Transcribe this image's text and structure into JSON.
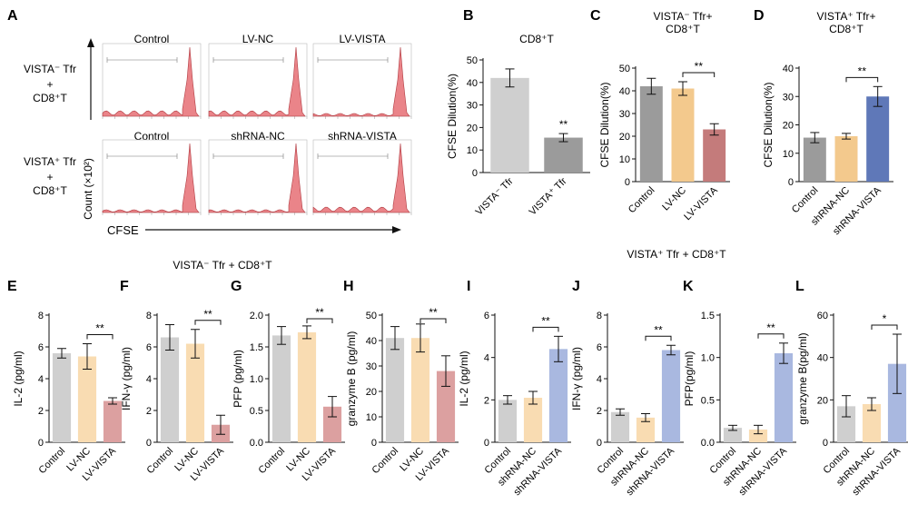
{
  "colors": {
    "grey": "#cfcfcf",
    "grey_dark": "#9b9b9b",
    "orange": "#f3c98d",
    "red": "#c47b7b",
    "blue": "#5f78b8",
    "light_orange": "#f9dcb2",
    "light_red": "#dca0a0",
    "light_blue": "#a9b8e0",
    "hist": "#e35b62"
  },
  "panel_a": {
    "letter": "A",
    "row1_label": [
      "VISTA⁻ Tfr",
      "+",
      "CD8⁺T"
    ],
    "row2_label": [
      "VISTA⁺ Tfr",
      "+",
      "CD8⁺T"
    ],
    "row1_titles": [
      "Control",
      "LV-NC",
      "LV-VISTA"
    ],
    "row2_titles": [
      "Control",
      "shRNA-NC",
      "shRNA-VISTA"
    ],
    "y_axis_label": "Count (×10²)",
    "x_axis_label": "CFSE"
  },
  "group_titles": {
    "left": "VISTA⁻ Tfr + CD8⁺T",
    "right": "VISTA⁺ Tfr + CD8⁺T"
  },
  "chart_data": [
    {
      "id": "B",
      "type": "bar",
      "title": "CD8⁺T",
      "ylabel": "CFSE Dilution(%)",
      "ylim": [
        0,
        50
      ],
      "ticks": [
        0,
        10,
        20,
        30,
        40,
        50
      ],
      "categories": [
        "VISTA⁻ Tfr",
        "VISTA⁺ Tfr"
      ],
      "values": [
        42,
        15.5
      ],
      "errors": [
        4,
        1.8
      ],
      "colors": [
        "#cfcfcf",
        "#9b9b9b"
      ],
      "star_label": "**",
      "star_over": 1
    },
    {
      "id": "C",
      "type": "bar",
      "title": "VISTA⁻ Tfr+ CD8⁺T",
      "ylabel": "CFSE Dilution(%)",
      "ylim": [
        0,
        50
      ],
      "ticks": [
        0,
        10,
        20,
        30,
        40,
        50
      ],
      "categories": [
        "Control",
        "LV-NC",
        "LV-VISTA"
      ],
      "values": [
        42,
        41,
        23
      ],
      "errors": [
        3.5,
        3,
        2.5
      ],
      "colors": [
        "#9b9b9b",
        "#f3c98d",
        "#c47b7b"
      ],
      "bracket": [
        1,
        2
      ],
      "star_label": "**"
    },
    {
      "id": "D",
      "type": "bar",
      "title": "VISTA⁺ Tfr+ CD8⁺T",
      "ylabel": "CFSE Dilution(%)",
      "ylim": [
        0,
        40
      ],
      "ticks": [
        0,
        10,
        20,
        30,
        40
      ],
      "categories": [
        "Control",
        "shRNA-NC",
        "shRNA-VISTA"
      ],
      "values": [
        15.5,
        16,
        30
      ],
      "errors": [
        1.8,
        1,
        3.5
      ],
      "colors": [
        "#9b9b9b",
        "#f3c98d",
        "#5f78b8"
      ],
      "bracket": [
        1,
        2
      ],
      "star_label": "**"
    },
    {
      "id": "E",
      "type": "bar",
      "ylabel": "IL-2 (pg/ml)",
      "ylim": [
        0,
        8
      ],
      "ticks": [
        0,
        2,
        4,
        6,
        8
      ],
      "categories": [
        "Control",
        "LV-NC",
        "LV-VISTA"
      ],
      "values": [
        5.6,
        5.4,
        2.6
      ],
      "errors": [
        0.3,
        0.8,
        0.2
      ],
      "colors": [
        "#cfcfcf",
        "#f9dcb2",
        "#dca0a0"
      ],
      "bracket": [
        1,
        2
      ],
      "star_label": "**"
    },
    {
      "id": "F",
      "type": "bar",
      "ylabel": "IFN-γ (pg/ml)",
      "ylim": [
        0,
        8
      ],
      "ticks": [
        0,
        2,
        4,
        6,
        8
      ],
      "categories": [
        "Control",
        "LV-NC",
        "LV-VISTA"
      ],
      "values": [
        6.6,
        6.2,
        1.1
      ],
      "errors": [
        0.8,
        0.9,
        0.6
      ],
      "colors": [
        "#cfcfcf",
        "#f9dcb2",
        "#dca0a0"
      ],
      "bracket": [
        1,
        2
      ],
      "star_label": "**"
    },
    {
      "id": "G",
      "type": "bar",
      "ylabel": "PFP (pg/ml)",
      "ylim": [
        0,
        2.0
      ],
      "ticks": [
        0.0,
        0.5,
        1.0,
        1.5,
        2.0
      ],
      "tick_decimals": 1,
      "categories": [
        "Control",
        "LV-NC",
        "LV-VISTA"
      ],
      "values": [
        1.68,
        1.73,
        0.56
      ],
      "errors": [
        0.14,
        0.1,
        0.16
      ],
      "colors": [
        "#cfcfcf",
        "#f9dcb2",
        "#dca0a0"
      ],
      "bracket": [
        1,
        2
      ],
      "star_label": "**"
    },
    {
      "id": "H",
      "type": "bar",
      "ylabel": "granzyme B (pg/ml)",
      "ylim": [
        0,
        50
      ],
      "ticks": [
        0,
        10,
        20,
        30,
        40,
        50
      ],
      "categories": [
        "Control",
        "LV-NC",
        "LV-VISTA"
      ],
      "values": [
        41,
        41,
        28
      ],
      "errors": [
        4.5,
        5.5,
        6
      ],
      "colors": [
        "#cfcfcf",
        "#f9dcb2",
        "#dca0a0"
      ],
      "bracket": [
        1,
        2
      ],
      "star_label": "**"
    },
    {
      "id": "I",
      "type": "bar",
      "ylabel": "IL-2 (pg/ml)",
      "ylim": [
        0,
        6
      ],
      "ticks": [
        0,
        2,
        4,
        6
      ],
      "categories": [
        "Control",
        "shRNA-NC",
        "shRNA-VISTA"
      ],
      "values": [
        2.0,
        2.1,
        4.4
      ],
      "errors": [
        0.2,
        0.3,
        0.6
      ],
      "colors": [
        "#cfcfcf",
        "#f9dcb2",
        "#a9b8e0"
      ],
      "bracket": [
        1,
        2
      ],
      "star_label": "**"
    },
    {
      "id": "J",
      "type": "bar",
      "ylabel": "IFN-γ (pg/ml)",
      "ylim": [
        0,
        8
      ],
      "ticks": [
        0,
        2,
        4,
        6,
        8
      ],
      "categories": [
        "Control",
        "shRNA-NC",
        "shRNA-VISTA"
      ],
      "values": [
        1.9,
        1.55,
        5.8
      ],
      "errors": [
        0.2,
        0.25,
        0.3
      ],
      "colors": [
        "#cfcfcf",
        "#f9dcb2",
        "#a9b8e0"
      ],
      "bracket": [
        1,
        2
      ],
      "star_label": "**"
    },
    {
      "id": "K",
      "type": "bar",
      "ylabel": "PFP(pg/ml)",
      "ylim": [
        0,
        1.5
      ],
      "ticks": [
        0.0,
        0.5,
        1.0,
        1.5
      ],
      "tick_decimals": 1,
      "categories": [
        "Control",
        "shRNA-NC",
        "shRNA-VISTA"
      ],
      "values": [
        0.17,
        0.15,
        1.05
      ],
      "errors": [
        0.03,
        0.05,
        0.12
      ],
      "colors": [
        "#cfcfcf",
        "#f9dcb2",
        "#a9b8e0"
      ],
      "bracket": [
        1,
        2
      ],
      "star_label": "**"
    },
    {
      "id": "L",
      "type": "bar",
      "ylabel": "granzyme B(pg/ml)",
      "ylim": [
        0,
        60
      ],
      "ticks": [
        0,
        20,
        40,
        60
      ],
      "categories": [
        "Control",
        "shRNA-NC",
        "shRNA-VISTA"
      ],
      "values": [
        17,
        18,
        37
      ],
      "errors": [
        5,
        3,
        14
      ],
      "colors": [
        "#cfcfcf",
        "#f9dcb2",
        "#a9b8e0"
      ],
      "bracket": [
        1,
        2
      ],
      "star_label": "*"
    }
  ]
}
